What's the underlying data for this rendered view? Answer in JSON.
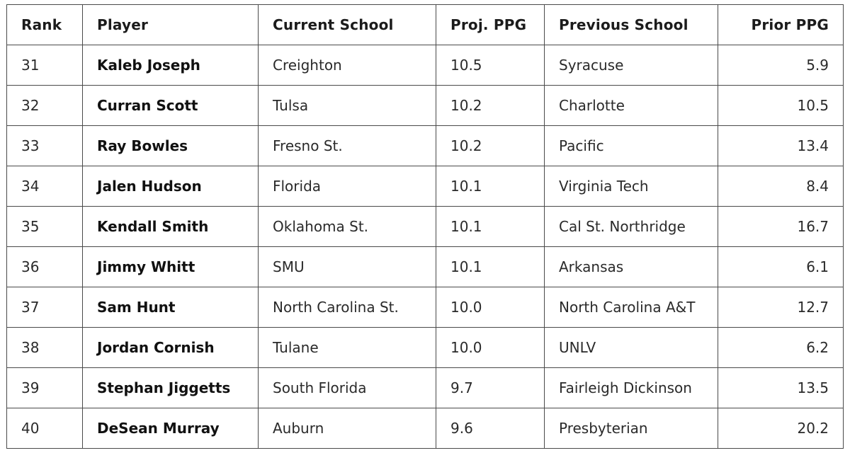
{
  "table": {
    "headers": {
      "rank": "Rank",
      "player": "Player",
      "current_school": "Current School",
      "proj_ppg": "Proj. PPG",
      "previous_school": "Previous School",
      "prior_ppg": "Prior PPG"
    },
    "rows": [
      {
        "rank": "31",
        "player": "Kaleb Joseph",
        "current_school": "Creighton",
        "proj_ppg": "10.5",
        "previous_school": "Syracuse",
        "prior_ppg": "5.9"
      },
      {
        "rank": "32",
        "player": "Curran Scott",
        "current_school": "Tulsa",
        "proj_ppg": "10.2",
        "previous_school": "Charlotte",
        "prior_ppg": "10.5"
      },
      {
        "rank": "33",
        "player": "Ray Bowles",
        "current_school": "Fresno St.",
        "proj_ppg": "10.2",
        "previous_school": "Pacific",
        "prior_ppg": "13.4"
      },
      {
        "rank": "34",
        "player": "Jalen Hudson",
        "current_school": "Florida",
        "proj_ppg": "10.1",
        "previous_school": "Virginia Tech",
        "prior_ppg": "8.4"
      },
      {
        "rank": "35",
        "player": "Kendall Smith",
        "current_school": "Oklahoma St.",
        "proj_ppg": "10.1",
        "previous_school": "Cal St. Northridge",
        "prior_ppg": "16.7"
      },
      {
        "rank": "36",
        "player": "Jimmy Whitt",
        "current_school": "SMU",
        "proj_ppg": "10.1",
        "previous_school": "Arkansas",
        "prior_ppg": "6.1"
      },
      {
        "rank": "37",
        "player": "Sam Hunt",
        "current_school": "North Carolina St.",
        "proj_ppg": "10.0",
        "previous_school": "North Carolina A&T",
        "prior_ppg": "12.7"
      },
      {
        "rank": "38",
        "player": "Jordan Cornish",
        "current_school": "Tulane",
        "proj_ppg": "10.0",
        "previous_school": "UNLV",
        "prior_ppg": "6.2"
      },
      {
        "rank": "39",
        "player": "Stephan Jiggetts",
        "current_school": "South Florida",
        "proj_ppg": "9.7",
        "previous_school": "Fairleigh Dickinson",
        "prior_ppg": "13.5"
      },
      {
        "rank": "40",
        "player": "DeSean Murray",
        "current_school": "Auburn",
        "proj_ppg": "9.6",
        "previous_school": "Presbyterian",
        "prior_ppg": "20.2"
      }
    ]
  }
}
